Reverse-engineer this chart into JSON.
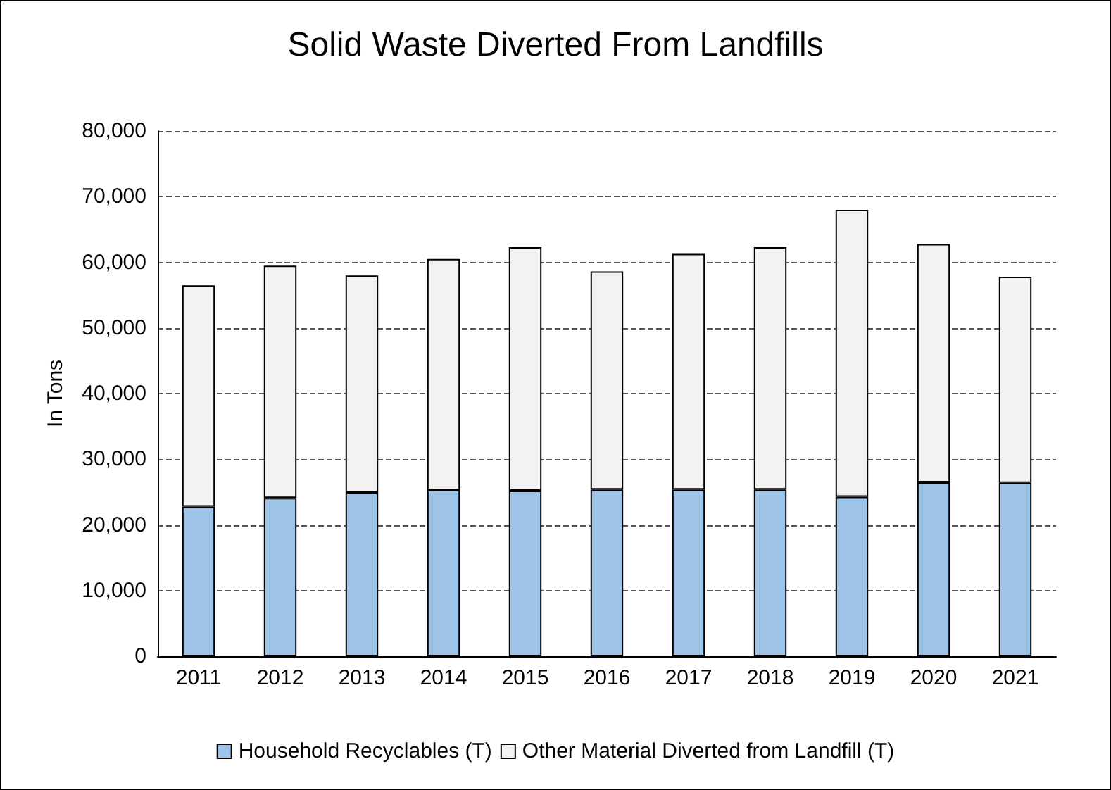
{
  "chart_data": {
    "type": "bar",
    "title": "Solid Waste Diverted From Landfills",
    "ylabel": "In Tons",
    "stacked": true,
    "grid": "y",
    "legend": "bottom",
    "categories": [
      "2011",
      "2012",
      "2013",
      "2014",
      "2015",
      "2016",
      "2017",
      "2018",
      "2019",
      "2020",
      "2021"
    ],
    "series": [
      {
        "name": "Household Recyclables (T)",
        "color": "#9dc3e6",
        "values": [
          22800,
          24100,
          25000,
          25300,
          25200,
          25400,
          25400,
          25400,
          24300,
          26500,
          26400
        ]
      },
      {
        "name": "Other Material Diverted from Landfill (T)",
        "color": "#f2f2f2",
        "values": [
          33700,
          35400,
          33000,
          35200,
          37100,
          33200,
          35900,
          36900,
          43700,
          36300,
          31400
        ]
      }
    ],
    "ylim": [
      0,
      80000
    ],
    "yticks": [
      0,
      {
        "value": 10000,
        "label": "10,000"
      },
      {
        "value": 20000,
        "label": "20,000"
      },
      {
        "value": 30000,
        "label": "30,000"
      },
      {
        "value": 40000,
        "label": "40,000"
      },
      {
        "value": 50000,
        "label": "50,000"
      },
      {
        "value": 60000,
        "label": "60,000"
      },
      {
        "value": 70000,
        "label": "70,000"
      },
      {
        "value": 80000,
        "label": "80,000"
      }
    ]
  }
}
